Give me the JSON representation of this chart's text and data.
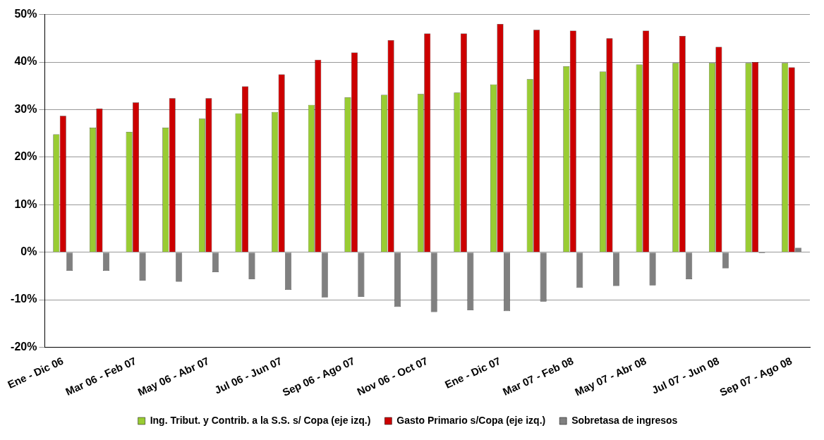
{
  "chart_data": {
    "type": "bar",
    "categories": [
      "Ene - Dic 06",
      null,
      "Mar 06 - Feb 07",
      null,
      "May 06 - Abr 07",
      null,
      "Jul 06 - Jun 07",
      null,
      "Sep 06 - Ago 07",
      null,
      "Nov 06 - Oct 07",
      null,
      "Ene - Dic 07",
      null,
      "Mar 07 - Feb 08",
      null,
      "May 07 - Abr 08",
      null,
      "Jul 07 - Jun 08",
      null,
      "Sep 07 - Ago 08"
    ],
    "series": [
      {
        "name": "Ing. Tribut. y Contrib. a la S.S. s/ Copa (eje izq.)",
        "color": "#99cc33",
        "values": [
          24.8,
          26.2,
          25.3,
          26.2,
          28.1,
          29.2,
          29.5,
          31,
          32.6,
          33.1,
          33.3,
          33.6,
          35.3,
          36.4,
          39.1,
          38,
          39.5,
          39.8,
          39.8,
          39.8,
          39.8
        ]
      },
      {
        "name": "Gasto Primario s/Copa (eje izq.)",
        "color": "#cc0000",
        "values": [
          28.7,
          30.2,
          31.5,
          32.4,
          32.4,
          34.9,
          37.4,
          40.5,
          42,
          44.6,
          46,
          46,
          48,
          46.8,
          46.6,
          45,
          46.6,
          45.5,
          43.2,
          40,
          38.9
        ]
      },
      {
        "name": "Sobretasa de ingresos",
        "color": "#808080",
        "values": [
          -3.9,
          -3.9,
          -6,
          -6.2,
          -4.2,
          -5.7,
          -7.9,
          -9.5,
          -9.4,
          -11.5,
          -12.6,
          -12.2,
          -12.4,
          -10.4,
          -7.5,
          -7.1,
          -7,
          -5.7,
          -3.4,
          -0.2,
          0.9
        ]
      }
    ],
    "ylim": [
      -20,
      50
    ],
    "yticks": [
      {
        "value": -20,
        "label": "-20%"
      },
      {
        "value": -10,
        "label": "-10%"
      },
      {
        "value": 0,
        "label": "0%"
      },
      {
        "value": 10,
        "label": "10%"
      },
      {
        "value": 20,
        "label": "20%"
      },
      {
        "value": 30,
        "label": "30%"
      },
      {
        "value": 40,
        "label": "40%"
      },
      {
        "value": 50,
        "label": "50%"
      }
    ],
    "grid": "y",
    "legend": "bottom"
  }
}
